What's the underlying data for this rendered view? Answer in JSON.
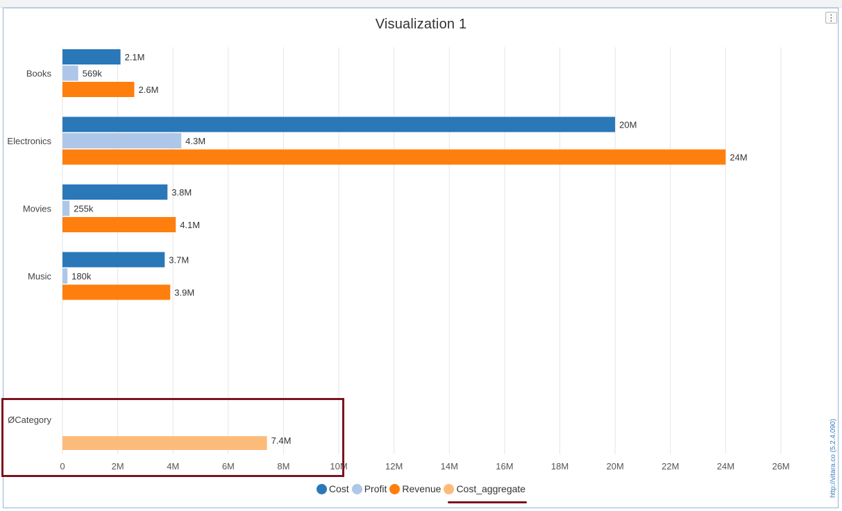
{
  "chart_data": {
    "type": "bar",
    "orientation": "horizontal",
    "title": "Visualization 1",
    "categories": [
      "Books",
      "Electronics",
      "Movies",
      "Music"
    ],
    "series": [
      {
        "name": "Cost",
        "color": "#2a78b8",
        "values": [
          2100000,
          20000000,
          3800000,
          3700000
        ],
        "labels": [
          "2.1M",
          "20M",
          "3.8M",
          "3.7M"
        ]
      },
      {
        "name": "Profit",
        "color": "#aec7e8",
        "values": [
          569000,
          4300000,
          255000,
          180000
        ],
        "labels": [
          "569k",
          "4.3M",
          "255k",
          "180k"
        ]
      },
      {
        "name": "Revenue",
        "color": "#ff7f0e",
        "values": [
          2600000,
          24000000,
          4100000,
          3900000
        ],
        "labels": [
          "2.6M",
          "24M",
          "4.1M",
          "3.9M"
        ]
      }
    ],
    "aggregate": {
      "category": "ØCategory",
      "series": "Cost_aggregate",
      "color": "#fdbb7a",
      "value": 7400000,
      "label": "7.4M"
    },
    "x_ticks": [
      {
        "value": 0,
        "label": "0"
      },
      {
        "value": 2000000,
        "label": "2M"
      },
      {
        "value": 4000000,
        "label": "4M"
      },
      {
        "value": 6000000,
        "label": "6M"
      },
      {
        "value": 8000000,
        "label": "8M"
      },
      {
        "value": 10000000,
        "label": "10M"
      },
      {
        "value": 12000000,
        "label": "12M"
      },
      {
        "value": 14000000,
        "label": "14M"
      },
      {
        "value": 16000000,
        "label": "16M"
      },
      {
        "value": 18000000,
        "label": "18M"
      },
      {
        "value": 20000000,
        "label": "20M"
      },
      {
        "value": 22000000,
        "label": "22M"
      },
      {
        "value": 24000000,
        "label": "24M"
      },
      {
        "value": 26000000,
        "label": "26M"
      }
    ],
    "xlim": [
      0,
      26000000
    ],
    "grid": true,
    "legend": "bottom-center"
  },
  "legend_items": [
    "Cost",
    "Profit",
    "Revenue",
    "Cost_aggregate"
  ],
  "version_text": "http://vitara.co   (5.2.4.090)",
  "menu_icon": "vertical-ellipsis-icon",
  "highlight_color": "#7a1420"
}
